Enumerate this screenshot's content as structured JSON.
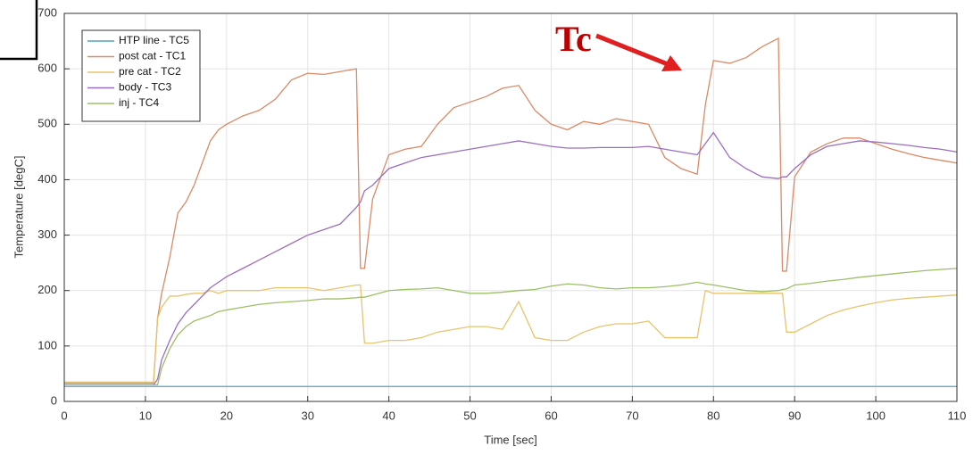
{
  "chart_data": {
    "type": "line",
    "xlabel": "Time [sec]",
    "ylabel": "Temperature [degC]",
    "annotation": "Tc",
    "x": [
      0,
      11,
      11.5,
      12,
      13,
      14,
      15,
      16,
      17,
      18,
      19,
      20,
      22,
      24,
      26,
      28,
      30,
      32,
      34,
      36,
      36.5,
      37,
      38,
      40,
      42,
      44,
      46,
      48,
      50,
      52,
      54,
      56,
      58,
      60,
      62,
      64,
      66,
      68,
      70,
      72,
      74,
      76,
      78,
      79,
      80,
      82,
      84,
      86,
      88,
      88.5,
      89,
      90,
      92,
      94,
      96,
      98,
      100,
      102,
      104,
      106,
      108,
      110
    ],
    "series": [
      {
        "name": "HTP line - TC5",
        "color": "#4fa3c9",
        "values": [
          27,
          27,
          27,
          27,
          27,
          27,
          27,
          27,
          27,
          27,
          27,
          27,
          27,
          27,
          27,
          27,
          27,
          27,
          27,
          27,
          27,
          27,
          27,
          27,
          27,
          27,
          27,
          27,
          27,
          27,
          27,
          27,
          27,
          27,
          27,
          27,
          27,
          27,
          27,
          27,
          27,
          27,
          27,
          27,
          27,
          27,
          27,
          27,
          27,
          27,
          27,
          27,
          27,
          27,
          27,
          27,
          27,
          27,
          27,
          27,
          27,
          27
        ]
      },
      {
        "name": "post cat - TC1",
        "color": "#d98a66",
        "values": [
          33,
          33,
          150,
          195,
          260,
          340,
          360,
          390,
          430,
          470,
          490,
          500,
          515,
          525,
          545,
          580,
          592,
          590,
          595,
          600,
          240,
          240,
          365,
          445,
          455,
          460,
          500,
          530,
          540,
          550,
          565,
          570,
          525,
          500,
          490,
          505,
          500,
          510,
          505,
          500,
          440,
          420,
          410,
          535,
          615,
          610,
          620,
          640,
          655,
          235,
          235,
          405,
          450,
          465,
          475,
          475,
          465,
          455,
          447,
          440,
          435,
          430
        ]
      },
      {
        "name": "pre cat - TC2",
        "color": "#e6c46c",
        "values": [
          35,
          35,
          150,
          170,
          190,
          190,
          193,
          195,
          195,
          200,
          195,
          200,
          200,
          200,
          205,
          205,
          205,
          200,
          205,
          210,
          210,
          105,
          105,
          110,
          110,
          115,
          125,
          130,
          135,
          135,
          130,
          180,
          115,
          110,
          110,
          125,
          135,
          140,
          140,
          145,
          115,
          115,
          115,
          200,
          195,
          195,
          195,
          195,
          195,
          195,
          125,
          125,
          140,
          155,
          165,
          172,
          178,
          183,
          186,
          188,
          190,
          192
        ]
      },
      {
        "name": "body - TC3",
        "color": "#9a6fbe",
        "values": [
          30,
          30,
          40,
          75,
          110,
          140,
          160,
          175,
          190,
          205,
          215,
          225,
          240,
          255,
          270,
          285,
          300,
          310,
          320,
          350,
          360,
          380,
          390,
          420,
          430,
          440,
          445,
          450,
          455,
          460,
          465,
          470,
          465,
          460,
          457,
          457,
          458,
          458,
          458,
          460,
          455,
          450,
          445,
          465,
          485,
          440,
          420,
          405,
          402,
          405,
          405,
          420,
          445,
          460,
          465,
          470,
          468,
          465,
          462,
          458,
          455,
          450
        ]
      },
      {
        "name": "inj - TC4",
        "color": "#9cbf66",
        "values": [
          30,
          30,
          30,
          60,
          95,
          120,
          135,
          145,
          150,
          155,
          162,
          165,
          170,
          175,
          178,
          180,
          182,
          185,
          185,
          187,
          188,
          188,
          192,
          200,
          202,
          203,
          205,
          200,
          195,
          195,
          197,
          200,
          202,
          208,
          212,
          210,
          205,
          203,
          205,
          205,
          207,
          210,
          215,
          212,
          210,
          205,
          200,
          198,
          200,
          202,
          203,
          210,
          213,
          217,
          220,
          224,
          227,
          230,
          233,
          236,
          238,
          240
        ]
      }
    ],
    "xlim": [
      0,
      110
    ],
    "xticks": [
      0,
      10,
      20,
      30,
      40,
      50,
      60,
      70,
      80,
      90,
      100,
      110
    ],
    "ylim": [
      0,
      700
    ],
    "yticks": [
      0,
      100,
      200,
      300,
      400,
      500,
      600,
      700
    ],
    "grid": true,
    "legend": "upper left"
  }
}
